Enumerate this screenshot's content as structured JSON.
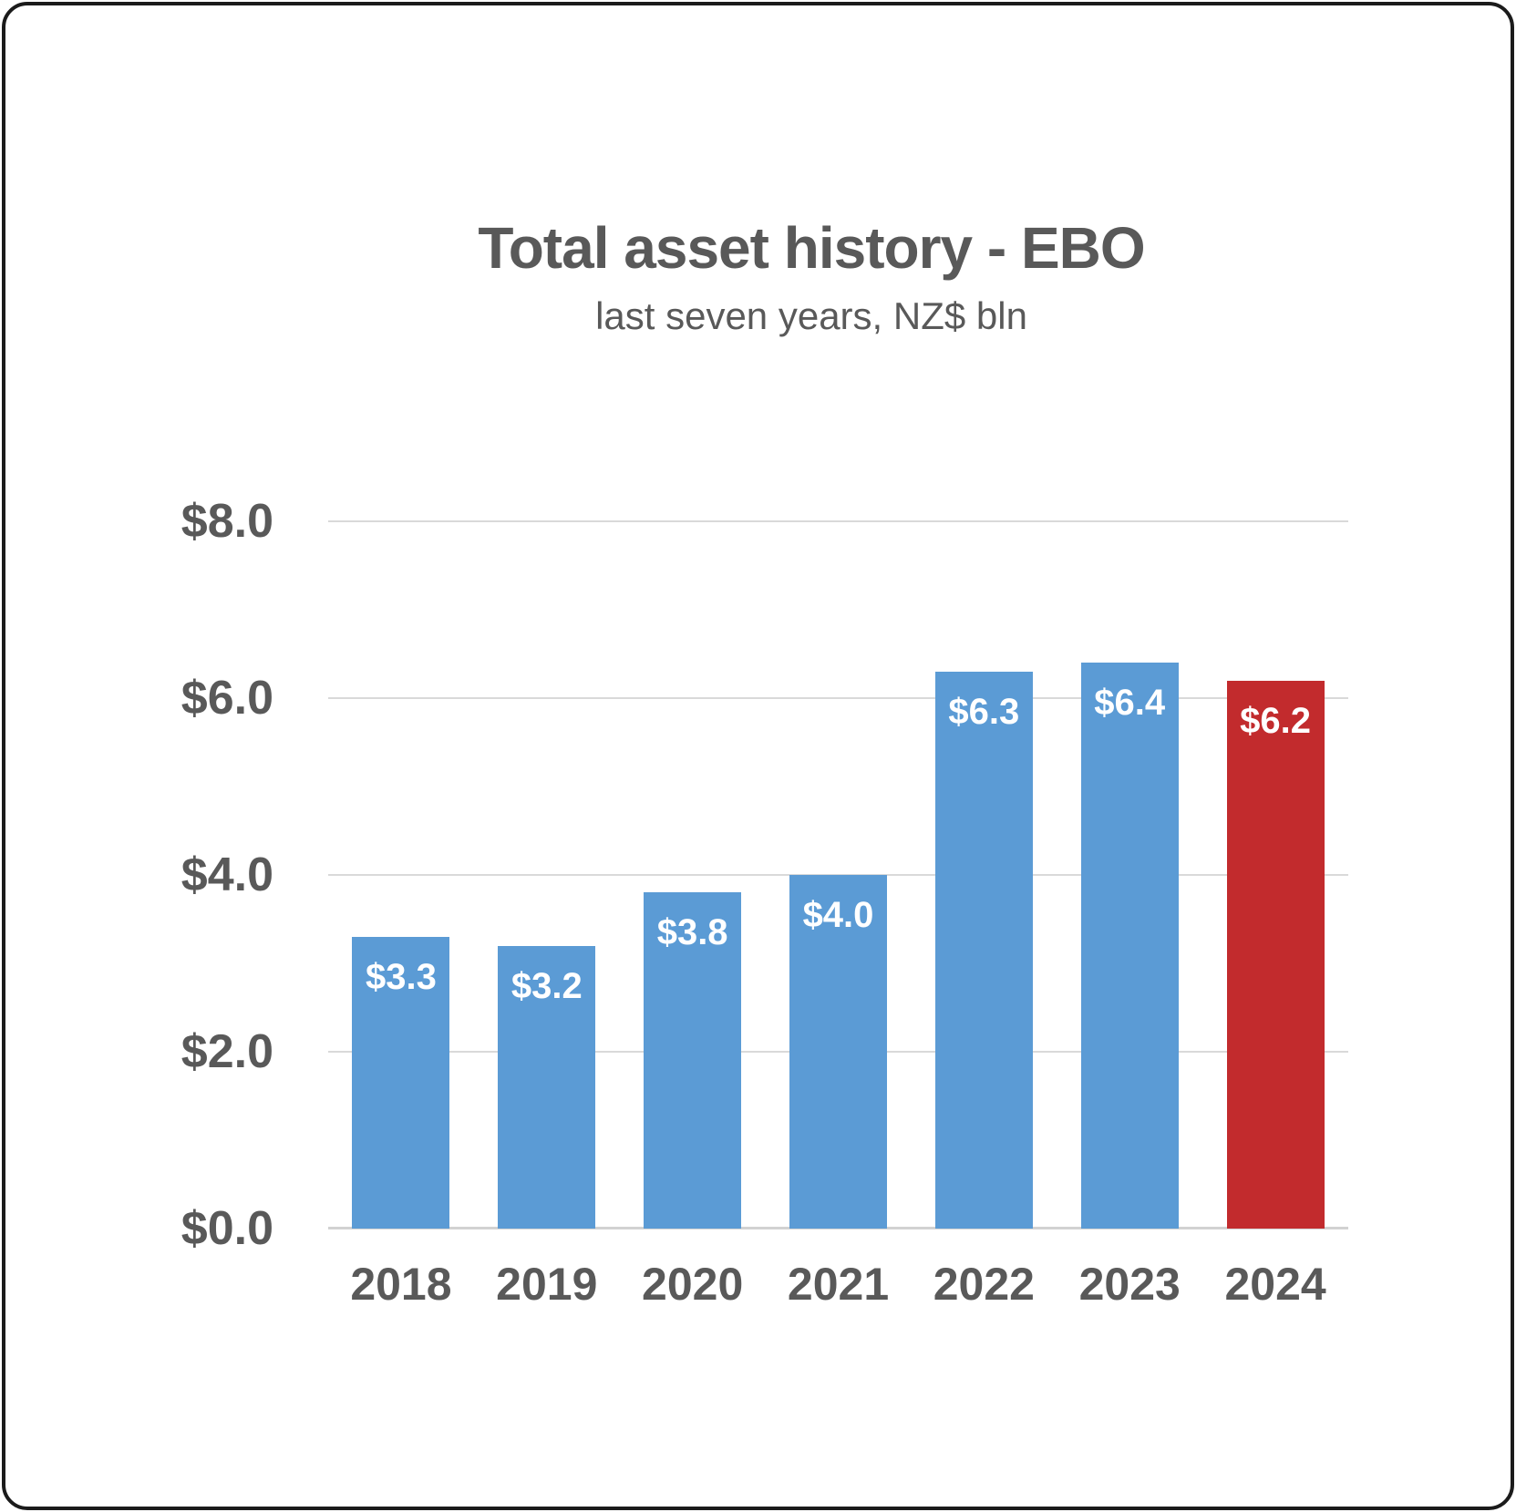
{
  "page": {
    "background": "#ffffff",
    "frame_border_color": "#1b1b1b"
  },
  "chart_data": {
    "type": "bar",
    "title": "Total asset history - EBO",
    "subtitle": "last seven years, NZ$ bln",
    "categories": [
      "2018",
      "2019",
      "2020",
      "2021",
      "2022",
      "2023",
      "2024"
    ],
    "values": [
      3.3,
      3.2,
      3.8,
      4.0,
      6.3,
      6.4,
      6.2
    ],
    "bar_labels": [
      "$3.3",
      "$3.2",
      "$3.8",
      "$4.0",
      "$6.3",
      "$6.4",
      "$6.2"
    ],
    "bar_colors": [
      "#5B9BD5",
      "#5B9BD5",
      "#5B9BD5",
      "#5B9BD5",
      "#5B9BD5",
      "#5B9BD5",
      "#C22B2D"
    ],
    "highlight_index": 6,
    "ylim": [
      0,
      8
    ],
    "y_tick_values": [
      8,
      6,
      4,
      2,
      0
    ],
    "y_tick_labels": [
      "$8.0",
      "$6.0",
      "$4.0",
      "$2.0",
      "$0.0"
    ],
    "grid": true,
    "legend": "none",
    "colors": {
      "bar_default": "#5B9BD5",
      "bar_highlight": "#C22B2D",
      "text": "#595959",
      "gridline": "#d9d9d9",
      "axis_line": "#d2d2d2",
      "bar_label_text": "#ffffff"
    }
  }
}
